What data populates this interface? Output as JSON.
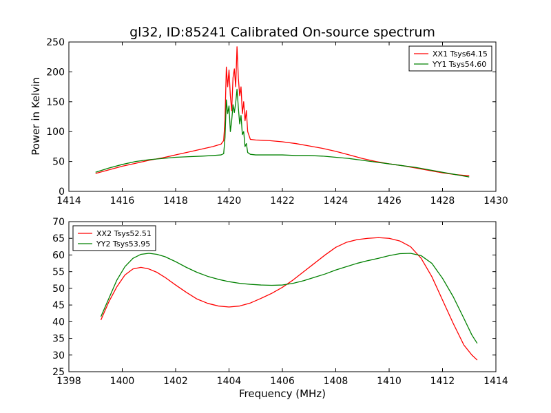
{
  "chart_data": [
    {
      "type": "line",
      "title": "gl32, ID:85241 Calibrated On-source spectrum",
      "xlabel": "",
      "ylabel": "Power in Kelvin",
      "xlim": [
        1414,
        1430
      ],
      "ylim": [
        0,
        250
      ],
      "xticks": [
        1414,
        1416,
        1418,
        1420,
        1422,
        1424,
        1426,
        1428,
        1430
      ],
      "yticks": [
        0,
        50,
        100,
        150,
        200,
        250
      ],
      "legend_position": "top-right",
      "grid": false,
      "series": [
        {
          "name": "XX1 Tsys64.15",
          "color": "#ff0000",
          "x": [
            1415.0,
            1415.5,
            1416.0,
            1416.5,
            1417.0,
            1417.5,
            1418.0,
            1418.5,
            1419.0,
            1419.4,
            1419.7,
            1419.8,
            1419.85,
            1419.9,
            1419.95,
            1420.0,
            1420.05,
            1420.1,
            1420.15,
            1420.2,
            1420.25,
            1420.3,
            1420.35,
            1420.4,
            1420.45,
            1420.5,
            1420.55,
            1420.6,
            1420.65,
            1420.7,
            1420.8,
            1421.0,
            1421.5,
            1422.0,
            1422.5,
            1423.0,
            1423.5,
            1424.0,
            1424.5,
            1425.0,
            1425.5,
            1426.0,
            1426.5,
            1427.0,
            1427.5,
            1428.0,
            1428.5,
            1429.0
          ],
          "y": [
            30,
            36,
            42,
            47,
            52,
            56,
            61,
            66,
            71,
            75,
            79,
            85,
            120,
            208,
            175,
            203,
            160,
            135,
            190,
            205,
            175,
            242,
            190,
            160,
            175,
            130,
            150,
            118,
            135,
            100,
            87,
            86,
            85,
            83,
            80,
            76,
            72,
            67,
            61,
            55,
            50,
            46,
            43,
            39,
            35,
            31,
            28,
            26
          ]
        },
        {
          "name": "YY1 Tsys54.60",
          "color": "#008000",
          "x": [
            1415.0,
            1415.5,
            1416.0,
            1416.5,
            1417.0,
            1417.5,
            1418.0,
            1418.5,
            1419.0,
            1419.4,
            1419.7,
            1419.8,
            1419.85,
            1419.9,
            1419.95,
            1420.0,
            1420.05,
            1420.1,
            1420.15,
            1420.2,
            1420.25,
            1420.3,
            1420.35,
            1420.4,
            1420.45,
            1420.5,
            1420.55,
            1420.6,
            1420.65,
            1420.7,
            1420.8,
            1421.0,
            1421.5,
            1422.0,
            1422.5,
            1423.0,
            1423.5,
            1424.0,
            1424.5,
            1425.0,
            1425.5,
            1426.0,
            1426.5,
            1427.0,
            1427.5,
            1428.0,
            1428.5,
            1429.0
          ],
          "y": [
            32,
            39,
            45,
            50,
            53,
            55,
            57,
            58,
            59,
            60,
            61,
            63,
            90,
            153,
            130,
            143,
            100,
            118,
            145,
            132,
            148,
            171,
            140,
            113,
            127,
            95,
            100,
            75,
            80,
            65,
            62,
            61,
            61,
            61,
            60,
            60,
            59,
            57,
            55,
            52,
            49,
            46,
            43,
            40,
            36,
            32,
            28,
            24
          ]
        }
      ]
    },
    {
      "type": "line",
      "title": "",
      "xlabel": "Frequency (MHz)",
      "ylabel": "",
      "xlim": [
        1398,
        1414
      ],
      "ylim": [
        25,
        70
      ],
      "xticks": [
        1398,
        1400,
        1402,
        1404,
        1406,
        1408,
        1410,
        1412,
        1414
      ],
      "yticks": [
        25,
        30,
        35,
        40,
        45,
        50,
        55,
        60,
        65,
        70
      ],
      "legend_position": "top-left",
      "grid": false,
      "series": [
        {
          "name": "XX2 Tsys52.51",
          "color": "#ff0000",
          "x": [
            1399.2,
            1399.5,
            1399.8,
            1400.1,
            1400.4,
            1400.7,
            1401.0,
            1401.3,
            1401.6,
            1402.0,
            1402.4,
            1402.8,
            1403.2,
            1403.6,
            1404.0,
            1404.4,
            1404.8,
            1405.2,
            1405.6,
            1406.0,
            1406.4,
            1406.8,
            1407.2,
            1407.6,
            1408.0,
            1408.4,
            1408.8,
            1409.2,
            1409.6,
            1410.0,
            1410.4,
            1410.8,
            1411.2,
            1411.6,
            1412.0,
            1412.4,
            1412.8,
            1413.1,
            1413.3
          ],
          "y": [
            40.5,
            46,
            50.5,
            54,
            55.8,
            56.3,
            55.8,
            54.8,
            53.3,
            51,
            48.8,
            46.8,
            45.5,
            44.7,
            44.4,
            44.7,
            45.6,
            47,
            48.5,
            50.3,
            52.5,
            55,
            57.5,
            60,
            62.3,
            63.8,
            64.6,
            65,
            65.2,
            65,
            64.2,
            62.5,
            59,
            53.5,
            46.5,
            39.5,
            33,
            30,
            28.5
          ]
        },
        {
          "name": "YY2 Tsys53.95",
          "color": "#008000",
          "x": [
            1399.2,
            1399.5,
            1399.8,
            1400.1,
            1400.4,
            1400.7,
            1401.0,
            1401.3,
            1401.6,
            1402.0,
            1402.4,
            1402.8,
            1403.2,
            1403.6,
            1404.0,
            1404.4,
            1404.8,
            1405.2,
            1405.6,
            1406.0,
            1406.4,
            1406.8,
            1407.2,
            1407.6,
            1408.0,
            1408.4,
            1408.8,
            1409.2,
            1409.6,
            1410.0,
            1410.4,
            1410.8,
            1411.2,
            1411.6,
            1412.0,
            1412.4,
            1412.8,
            1413.1,
            1413.3
          ],
          "y": [
            41.5,
            47,
            52.5,
            56.5,
            59,
            60.2,
            60.5,
            60.2,
            59.5,
            58,
            56.3,
            54.8,
            53.6,
            52.7,
            52,
            51.5,
            51.2,
            51,
            50.9,
            51,
            51.5,
            52.3,
            53.3,
            54.3,
            55.5,
            56.5,
            57.5,
            58.3,
            59,
            59.8,
            60.4,
            60.5,
            59.8,
            57.5,
            53,
            47.5,
            41,
            36,
            33.5
          ]
        }
      ]
    }
  ]
}
